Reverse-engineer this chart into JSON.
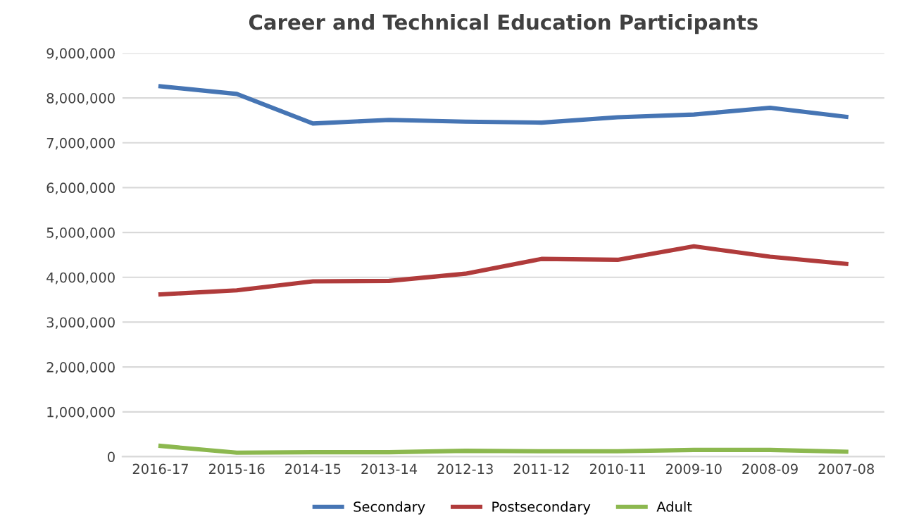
{
  "chart_data": {
    "type": "line",
    "title": "Career and Technical Education Participants",
    "categories": [
      "2016-17",
      "2015-16",
      "2014-15",
      "2013-14",
      "2012-13",
      "2011-12",
      "2010-11",
      "2009-10",
      "2008-09",
      "2007-08"
    ],
    "series": [
      {
        "name": "Secondary",
        "color": "#4675b4",
        "values": [
          8260000,
          8090000,
          7430000,
          7510000,
          7470000,
          7450000,
          7570000,
          7630000,
          7780000,
          7580000
        ]
      },
      {
        "name": "Postsecondary",
        "color": "#b03b3b",
        "values": [
          3620000,
          3710000,
          3910000,
          3920000,
          4080000,
          4410000,
          4390000,
          4690000,
          4460000,
          4300000
        ]
      },
      {
        "name": "Adult",
        "color": "#8cb84f",
        "values": [
          240000,
          90000,
          100000,
          100000,
          130000,
          120000,
          120000,
          150000,
          150000,
          110000
        ]
      }
    ],
    "ylim": [
      0,
      9000000
    ],
    "yticks": [
      {
        "value": 0,
        "label": "0"
      },
      {
        "value": 1000000,
        "label": "1,000,000"
      },
      {
        "value": 2000000,
        "label": "2,000,000"
      },
      {
        "value": 3000000,
        "label": "3,000,000"
      },
      {
        "value": 4000000,
        "label": "4,000,000"
      },
      {
        "value": 5000000,
        "label": "5,000,000"
      },
      {
        "value": 6000000,
        "label": "6,000,000"
      },
      {
        "value": 7000000,
        "label": "7,000,000"
      },
      {
        "value": 8000000,
        "label": "8,000,000"
      },
      {
        "value": 9000000,
        "label": "9,000,000"
      }
    ],
    "grid": "y",
    "legend": "bottom",
    "marker": "none",
    "line_style": "solid"
  }
}
